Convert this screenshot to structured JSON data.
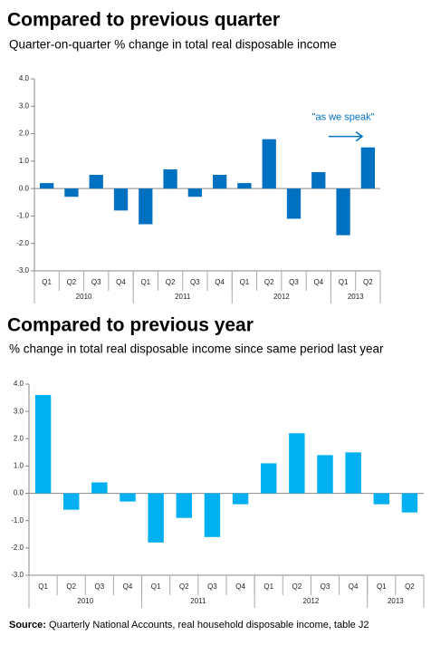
{
  "chart_data": [
    {
      "type": "bar",
      "title": "Compared to previous quarter",
      "subtitle": "Quarter-on-quarter % change in total real disposable income",
      "groups": [
        {
          "label": "2010",
          "categories": [
            "Q1",
            "Q2",
            "Q3",
            "Q4"
          ]
        },
        {
          "label": "2011",
          "categories": [
            "Q1",
            "Q2",
            "Q3",
            "Q4"
          ]
        },
        {
          "label": "2012",
          "categories": [
            "Q1",
            "Q2",
            "Q3",
            "Q4"
          ]
        },
        {
          "label": "2013",
          "categories": [
            "Q1",
            "Q2"
          ]
        }
      ],
      "values": [
        0.2,
        -0.3,
        0.5,
        -0.8,
        -1.3,
        0.7,
        -0.3,
        0.5,
        0.2,
        1.8,
        -1.1,
        0.6,
        -1.7,
        1.5
      ],
      "color": "#0070c0",
      "annotation": "\"as we speak\"",
      "ylim": [
        -3,
        4
      ],
      "yticks": [
        {
          "value": 4,
          "label": "4.0"
        },
        {
          "value": 3,
          "label": "3.0"
        },
        {
          "value": 2,
          "label": "2.0"
        },
        {
          "value": 1,
          "label": "1.0"
        },
        {
          "value": 0,
          "label": "0.0"
        },
        {
          "value": -1,
          "label": "-1.0"
        },
        {
          "value": -2,
          "label": "-2.0"
        },
        {
          "value": -3,
          "label": "-3.0"
        }
      ]
    },
    {
      "type": "bar",
      "title": "Compared to previous year",
      "subtitle": "% change in total real disposable income since same period last year",
      "groups": [
        {
          "label": "2010",
          "categories": [
            "Q1",
            "Q2",
            "Q3",
            "Q4"
          ]
        },
        {
          "label": "2011",
          "categories": [
            "Q1",
            "Q2",
            "Q3",
            "Q4"
          ]
        },
        {
          "label": "2012",
          "categories": [
            "Q1",
            "Q2",
            "Q3",
            "Q4"
          ]
        },
        {
          "label": "2013",
          "categories": [
            "Q1",
            "Q2"
          ]
        }
      ],
      "values": [
        3.6,
        -0.6,
        0.4,
        -0.3,
        -1.8,
        -0.9,
        -1.6,
        -0.4,
        1.1,
        2.2,
        1.4,
        1.5,
        -0.4,
        -0.7
      ],
      "color": "#00b0f0",
      "ylim": [
        -3,
        4
      ],
      "yticks": [
        {
          "value": 4,
          "label": "4.0"
        },
        {
          "value": 3,
          "label": "3.0"
        },
        {
          "value": 2,
          "label": "2.0"
        },
        {
          "value": 1,
          "label": "1.0"
        },
        {
          "value": 0,
          "label": "0.0"
        },
        {
          "value": -1,
          "label": "-1.0"
        },
        {
          "value": -2,
          "label": "-2.0"
        },
        {
          "value": -3,
          "label": "-3.0"
        }
      ]
    }
  ],
  "source": {
    "label": "Source:",
    "text": "Quarterly National Accounts, real household disposable income, table J2"
  }
}
